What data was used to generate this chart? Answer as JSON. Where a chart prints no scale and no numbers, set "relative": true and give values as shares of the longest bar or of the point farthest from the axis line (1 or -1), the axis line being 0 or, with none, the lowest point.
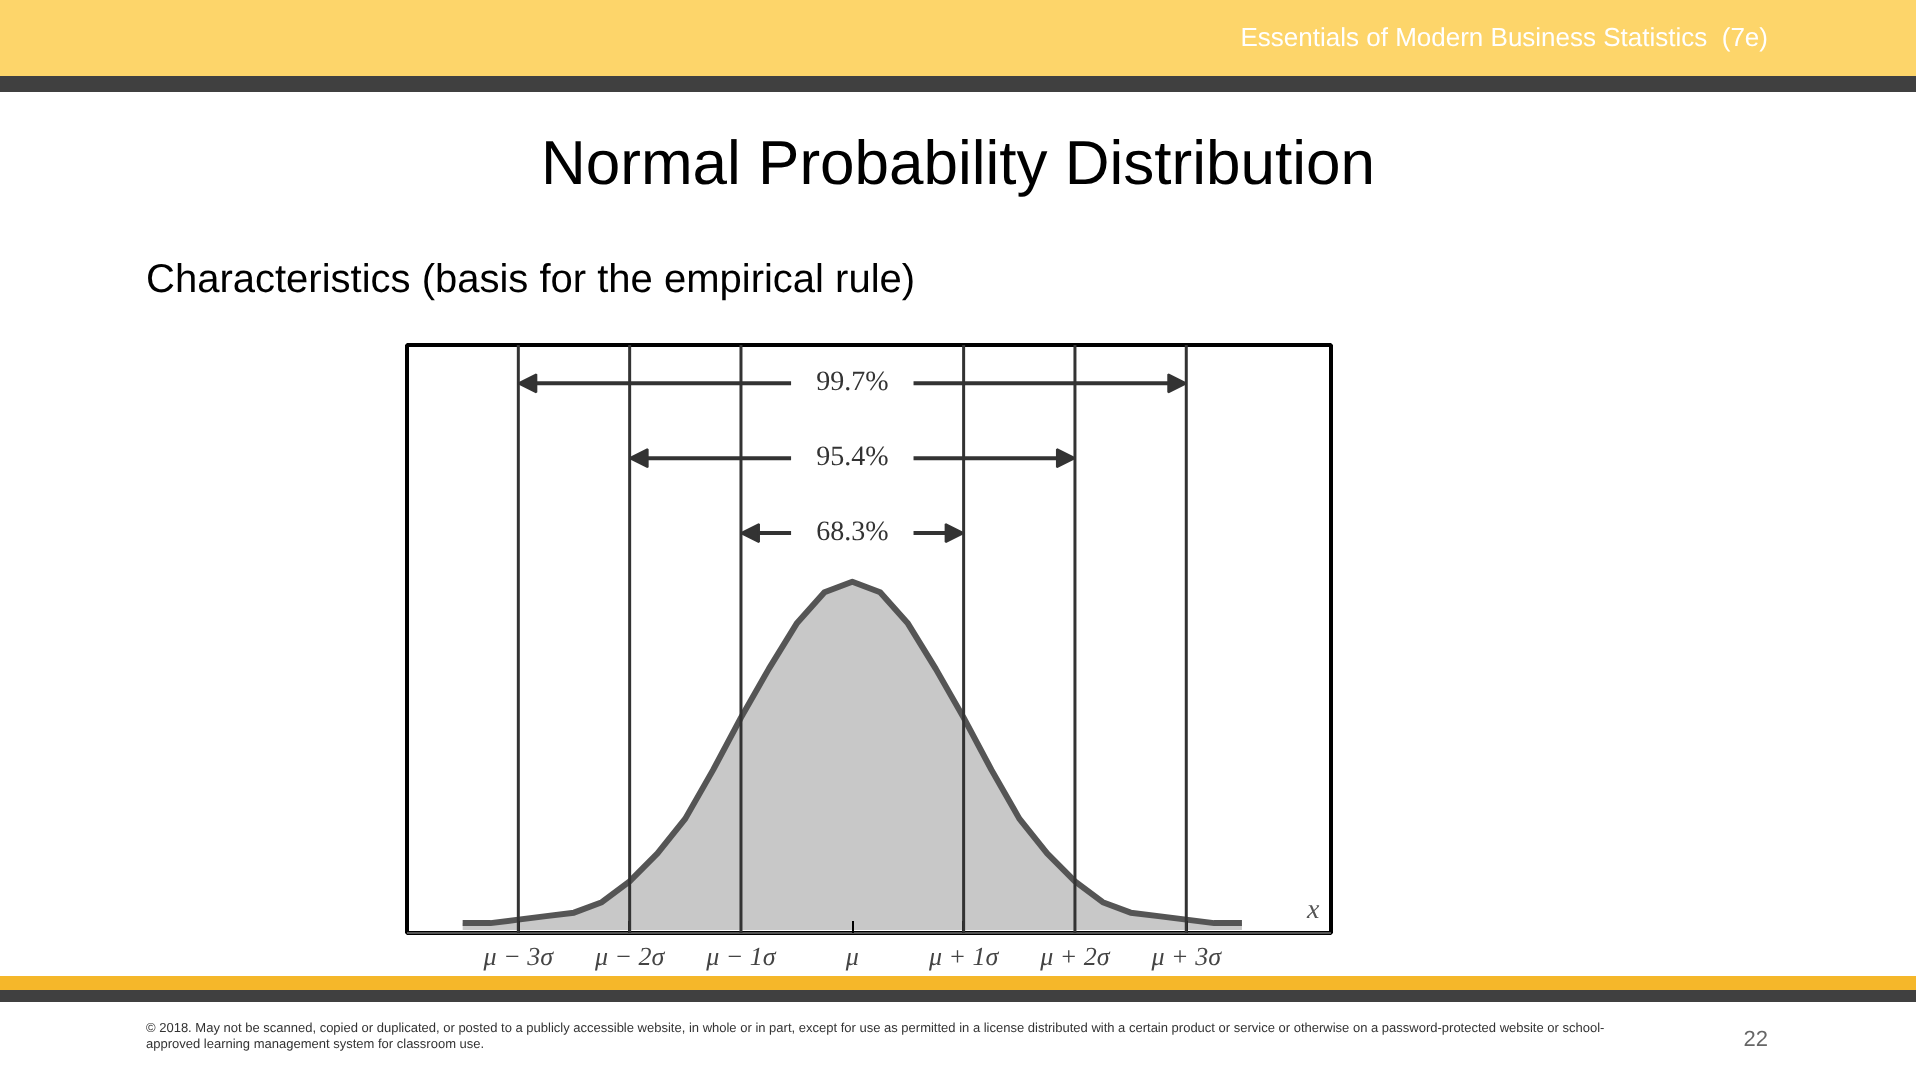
{
  "chart_data": {
    "type": "area",
    "title": "Normal Probability Distribution",
    "subtitle": "Characteristics (basis for the empirical rule)",
    "xlabel": "x",
    "relative": true,
    "x": [
      -3.5,
      -3.25,
      -3,
      -2.75,
      -2.5,
      -2.25,
      -2,
      -1.75,
      -1.5,
      -1.25,
      -1,
      -0.75,
      -0.5,
      -0.25,
      0,
      0.25,
      0.5,
      0.75,
      1,
      1.25,
      1.5,
      1.75,
      2,
      2.25,
      2.5,
      2.75,
      3,
      3.25,
      3.5
    ],
    "series": [
      {
        "color": "#c8c8c8",
        "values": [
          0.02,
          0.02,
          0.03,
          0.04,
          0.05,
          0.08,
          0.14,
          0.22,
          0.32,
          0.46,
          0.61,
          0.75,
          0.88,
          0.97,
          1,
          0.97,
          0.88,
          0.75,
          0.61,
          0.46,
          0.32,
          0.22,
          0.14,
          0.08,
          0.05,
          0.04,
          0.03,
          0.02,
          0.02
        ]
      }
    ],
    "xlim": [
      -4,
      4.3
    ],
    "xticks": [
      {
        "value": -3,
        "label": "μ − 3σ"
      },
      {
        "value": -2,
        "label": "μ − 2σ"
      },
      {
        "value": -1,
        "label": "μ − 1σ"
      },
      {
        "value": 0,
        "label": "μ"
      },
      {
        "value": 1,
        "label": "μ + 1σ"
      },
      {
        "value": 2,
        "label": "μ + 2σ"
      },
      {
        "value": 3,
        "label": "μ + 3σ"
      }
    ],
    "ref_lines": [
      {
        "axis": "x",
        "value": -3
      },
      {
        "axis": "x",
        "value": -2
      },
      {
        "axis": "x",
        "value": -1
      },
      {
        "axis": "x",
        "value": 1
      },
      {
        "axis": "x",
        "value": 2
      },
      {
        "axis": "x",
        "value": 3
      }
    ],
    "annotations": [
      "99.7%",
      "95.4%",
      "68.3%",
      "Essentials of Modern Business Statistics  (7e)",
      "© 2018. May not be scanned, copied or duplicated, or posted to a publicly accessible website, in whole or in part, except for use as permitted in a license distributed with a certain product or service or otherwise on a password-protected website or school-approved learning management system for classroom use.",
      "22"
    ],
    "grid": false
  }
}
